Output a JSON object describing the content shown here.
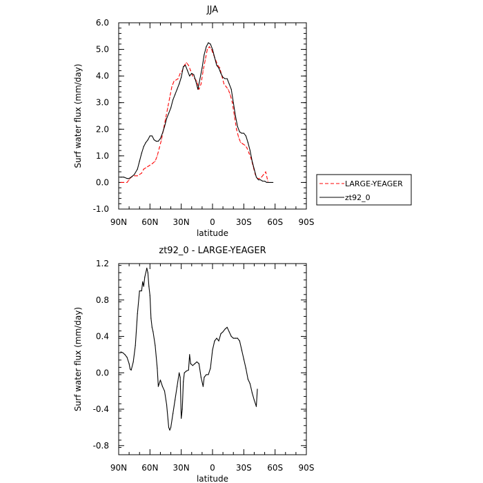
{
  "chart_data": [
    {
      "type": "line",
      "title": "JJA",
      "xlabel": "latitude",
      "ylabel": "Surf water flux (mm/day)",
      "xlim": [
        90,
        -90
      ],
      "ylim": [
        -1.0,
        6.0
      ],
      "xticks": [
        90,
        60,
        30,
        0,
        -30,
        -60,
        -90
      ],
      "xtick_labels": [
        "90N",
        "60N",
        "30N",
        "0",
        "30S",
        "60S",
        "90S"
      ],
      "yticks": [
        -1.0,
        0.0,
        1.0,
        2.0,
        3.0,
        4.0,
        5.0,
        6.0
      ],
      "ytick_labels": [
        "-1.0",
        "0.0",
        "1.0",
        "2.0",
        "3.0",
        "4.0",
        "5.0",
        "6.0"
      ],
      "legend_position": "outside-right",
      "series": [
        {
          "name": "LARGE-YEAGER",
          "color": "#ff0000",
          "dash": "dashed",
          "points": [
            [
              88,
              0.0
            ],
            [
              85,
              0.0
            ],
            [
              82,
              0.0
            ],
            [
              80,
              0.1
            ],
            [
              78,
              0.2
            ],
            [
              75,
              0.25
            ],
            [
              72,
              0.25
            ],
            [
              70,
              0.3
            ],
            [
              68,
              0.35
            ],
            [
              66,
              0.5
            ],
            [
              64,
              0.55
            ],
            [
              62,
              0.6
            ],
            [
              60,
              0.65
            ],
            [
              58,
              0.7
            ],
            [
              55,
              0.8
            ],
            [
              53,
              1.0
            ],
            [
              51,
              1.3
            ],
            [
              49,
              1.6
            ],
            [
              47,
              2.0
            ],
            [
              45,
              2.4
            ],
            [
              43,
              2.8
            ],
            [
              41,
              3.2
            ],
            [
              39,
              3.6
            ],
            [
              37,
              3.8
            ],
            [
              35,
              3.85
            ],
            [
              33,
              3.9
            ],
            [
              31,
              4.1
            ],
            [
              29,
              4.2
            ],
            [
              27,
              4.4
            ],
            [
              25,
              4.5
            ],
            [
              23,
              4.4
            ],
            [
              21,
              4.2
            ],
            [
              19,
              4.0
            ],
            [
              17,
              3.9
            ],
            [
              15,
              3.8
            ],
            [
              13,
              3.5
            ],
            [
              11,
              3.7
            ],
            [
              9,
              4.2
            ],
            [
              7,
              4.6
            ],
            [
              5,
              5.0
            ],
            [
              3,
              5.1
            ],
            [
              1,
              5.0
            ],
            [
              -1,
              4.8
            ],
            [
              -3,
              4.6
            ],
            [
              -5,
              4.4
            ],
            [
              -7,
              4.3
            ],
            [
              -9,
              4.0
            ],
            [
              -11,
              3.7
            ],
            [
              -13,
              3.6
            ],
            [
              -15,
              3.5
            ],
            [
              -17,
              3.3
            ],
            [
              -19,
              3.0
            ],
            [
              -21,
              2.5
            ],
            [
              -23,
              2.0
            ],
            [
              -25,
              1.7
            ],
            [
              -27,
              1.5
            ],
            [
              -29,
              1.45
            ],
            [
              -31,
              1.4
            ],
            [
              -33,
              1.3
            ],
            [
              -35,
              1.1
            ],
            [
              -37,
              0.9
            ],
            [
              -39,
              0.6
            ],
            [
              -41,
              0.3
            ],
            [
              -43,
              0.15
            ],
            [
              -45,
              0.15
            ],
            [
              -47,
              0.2
            ],
            [
              -49,
              0.3
            ],
            [
              -51,
              0.4
            ],
            [
              -53,
              0.05
            ]
          ]
        },
        {
          "name": "zt92_0",
          "color": "#000000",
          "dash": "solid",
          "points": [
            [
              88,
              0.2
            ],
            [
              85,
              0.2
            ],
            [
              82,
              0.15
            ],
            [
              80,
              0.15
            ],
            [
              78,
              0.2
            ],
            [
              75,
              0.3
            ],
            [
              72,
              0.5
            ],
            [
              70,
              0.8
            ],
            [
              68,
              1.1
            ],
            [
              66,
              1.35
            ],
            [
              64,
              1.5
            ],
            [
              62,
              1.6
            ],
            [
              60,
              1.75
            ],
            [
              58,
              1.75
            ],
            [
              56,
              1.6
            ],
            [
              54,
              1.55
            ],
            [
              52,
              1.55
            ],
            [
              50,
              1.65
            ],
            [
              48,
              1.85
            ],
            [
              46,
              2.1
            ],
            [
              44,
              2.4
            ],
            [
              42,
              2.6
            ],
            [
              40,
              2.8
            ],
            [
              38,
              3.1
            ],
            [
              36,
              3.3
            ],
            [
              34,
              3.5
            ],
            [
              32,
              3.7
            ],
            [
              30,
              3.95
            ],
            [
              28,
              4.35
            ],
            [
              26,
              4.4
            ],
            [
              24,
              4.2
            ],
            [
              22,
              4.0
            ],
            [
              20,
              4.1
            ],
            [
              18,
              4.05
            ],
            [
              16,
              3.8
            ],
            [
              14,
              3.5
            ],
            [
              12,
              3.9
            ],
            [
              10,
              4.3
            ],
            [
              8,
              4.8
            ],
            [
              6,
              5.1
            ],
            [
              4,
              5.25
            ],
            [
              2,
              5.2
            ],
            [
              0,
              5.0
            ],
            [
              -2,
              4.7
            ],
            [
              -4,
              4.4
            ],
            [
              -6,
              4.3
            ],
            [
              -8,
              4.1
            ],
            [
              -10,
              3.95
            ],
            [
              -12,
              3.9
            ],
            [
              -14,
              3.9
            ],
            [
              -16,
              3.7
            ],
            [
              -18,
              3.5
            ],
            [
              -20,
              3.0
            ],
            [
              -22,
              2.5
            ],
            [
              -24,
              2.1
            ],
            [
              -26,
              1.9
            ],
            [
              -28,
              1.85
            ],
            [
              -30,
              1.85
            ],
            [
              -32,
              1.75
            ],
            [
              -34,
              1.5
            ],
            [
              -36,
              1.2
            ],
            [
              -38,
              0.8
            ],
            [
              -40,
              0.5
            ],
            [
              -42,
              0.2
            ],
            [
              -44,
              0.1
            ],
            [
              -46,
              0.1
            ],
            [
              -48,
              0.05
            ],
            [
              -50,
              0.05
            ],
            [
              -52,
              0.0
            ],
            [
              -54,
              0.0
            ],
            [
              -56,
              0.0
            ],
            [
              -58,
              0.0
            ]
          ]
        }
      ]
    },
    {
      "type": "line",
      "title": "zt92_0 - LARGE-YEAGER",
      "xlabel": "latitude",
      "ylabel": "Surf water flux (mm/day)",
      "xlim": [
        90,
        -90
      ],
      "ylim": [
        -0.9,
        1.2
      ],
      "xticks": [
        90,
        60,
        30,
        0,
        -30,
        -60,
        -90
      ],
      "xtick_labels": [
        "90N",
        "60N",
        "30N",
        "0",
        "30S",
        "60S",
        "90S"
      ],
      "yticks": [
        -0.8,
        -0.4,
        0.0,
        0.4,
        0.8,
        1.2
      ],
      "ytick_labels": [
        "-0.8",
        "-0.4",
        "0.0",
        "0.4",
        "0.8",
        "1.2"
      ],
      "series": [
        {
          "color": "#000000",
          "dash": "solid",
          "points": [
            [
              88,
              0.23
            ],
            [
              86,
              0.22
            ],
            [
              84,
              0.2
            ],
            [
              82,
              0.17
            ],
            [
              80,
              0.1
            ],
            [
              79,
              0.04
            ],
            [
              78,
              0.03
            ],
            [
              76,
              0.12
            ],
            [
              74,
              0.3
            ],
            [
              72,
              0.65
            ],
            [
              70,
              0.9
            ],
            [
              68,
              0.9
            ],
            [
              67,
              1.0
            ],
            [
              66,
              0.95
            ],
            [
              65,
              1.05
            ],
            [
              63,
              1.15
            ],
            [
              62,
              1.1
            ],
            [
              61,
              0.95
            ],
            [
              60,
              0.85
            ],
            [
              59,
              0.6
            ],
            [
              58,
              0.5
            ],
            [
              57,
              0.45
            ],
            [
              55,
              0.3
            ],
            [
              53,
              0.05
            ],
            [
              52,
              -0.15
            ],
            [
              50,
              -0.08
            ],
            [
              48,
              -0.15
            ],
            [
              46,
              -0.2
            ],
            [
              44,
              -0.35
            ],
            [
              42,
              -0.6
            ],
            [
              41,
              -0.63
            ],
            [
              40,
              -0.6
            ],
            [
              38,
              -0.45
            ],
            [
              36,
              -0.3
            ],
            [
              34,
              -0.15
            ],
            [
              32,
              0.0
            ],
            [
              31,
              -0.05
            ],
            [
              30,
              -0.5
            ],
            [
              29,
              -0.4
            ],
            [
              28,
              -0.1
            ],
            [
              27,
              0.0
            ],
            [
              25,
              0.02
            ],
            [
              23,
              0.03
            ],
            [
              22,
              0.2
            ],
            [
              21,
              0.1
            ],
            [
              19,
              0.08
            ],
            [
              17,
              0.1
            ],
            [
              15,
              0.12
            ],
            [
              13,
              0.1
            ],
            [
              11,
              -0.05
            ],
            [
              9,
              -0.15
            ],
            [
              8,
              -0.05
            ],
            [
              6,
              -0.02
            ],
            [
              4,
              -0.02
            ],
            [
              2,
              0.05
            ],
            [
              0,
              0.25
            ],
            [
              -2,
              0.35
            ],
            [
              -4,
              0.38
            ],
            [
              -6,
              0.35
            ],
            [
              -8,
              0.43
            ],
            [
              -10,
              0.45
            ],
            [
              -12,
              0.48
            ],
            [
              -14,
              0.5
            ],
            [
              -16,
              0.45
            ],
            [
              -18,
              0.4
            ],
            [
              -20,
              0.38
            ],
            [
              -22,
              0.38
            ],
            [
              -24,
              0.38
            ],
            [
              -26,
              0.35
            ],
            [
              -28,
              0.25
            ],
            [
              -30,
              0.15
            ],
            [
              -32,
              0.05
            ],
            [
              -34,
              -0.07
            ],
            [
              -36,
              -0.12
            ],
            [
              -38,
              -0.22
            ],
            [
              -40,
              -0.3
            ],
            [
              -42,
              -0.37
            ],
            [
              -43,
              -0.18
            ]
          ]
        }
      ]
    }
  ]
}
